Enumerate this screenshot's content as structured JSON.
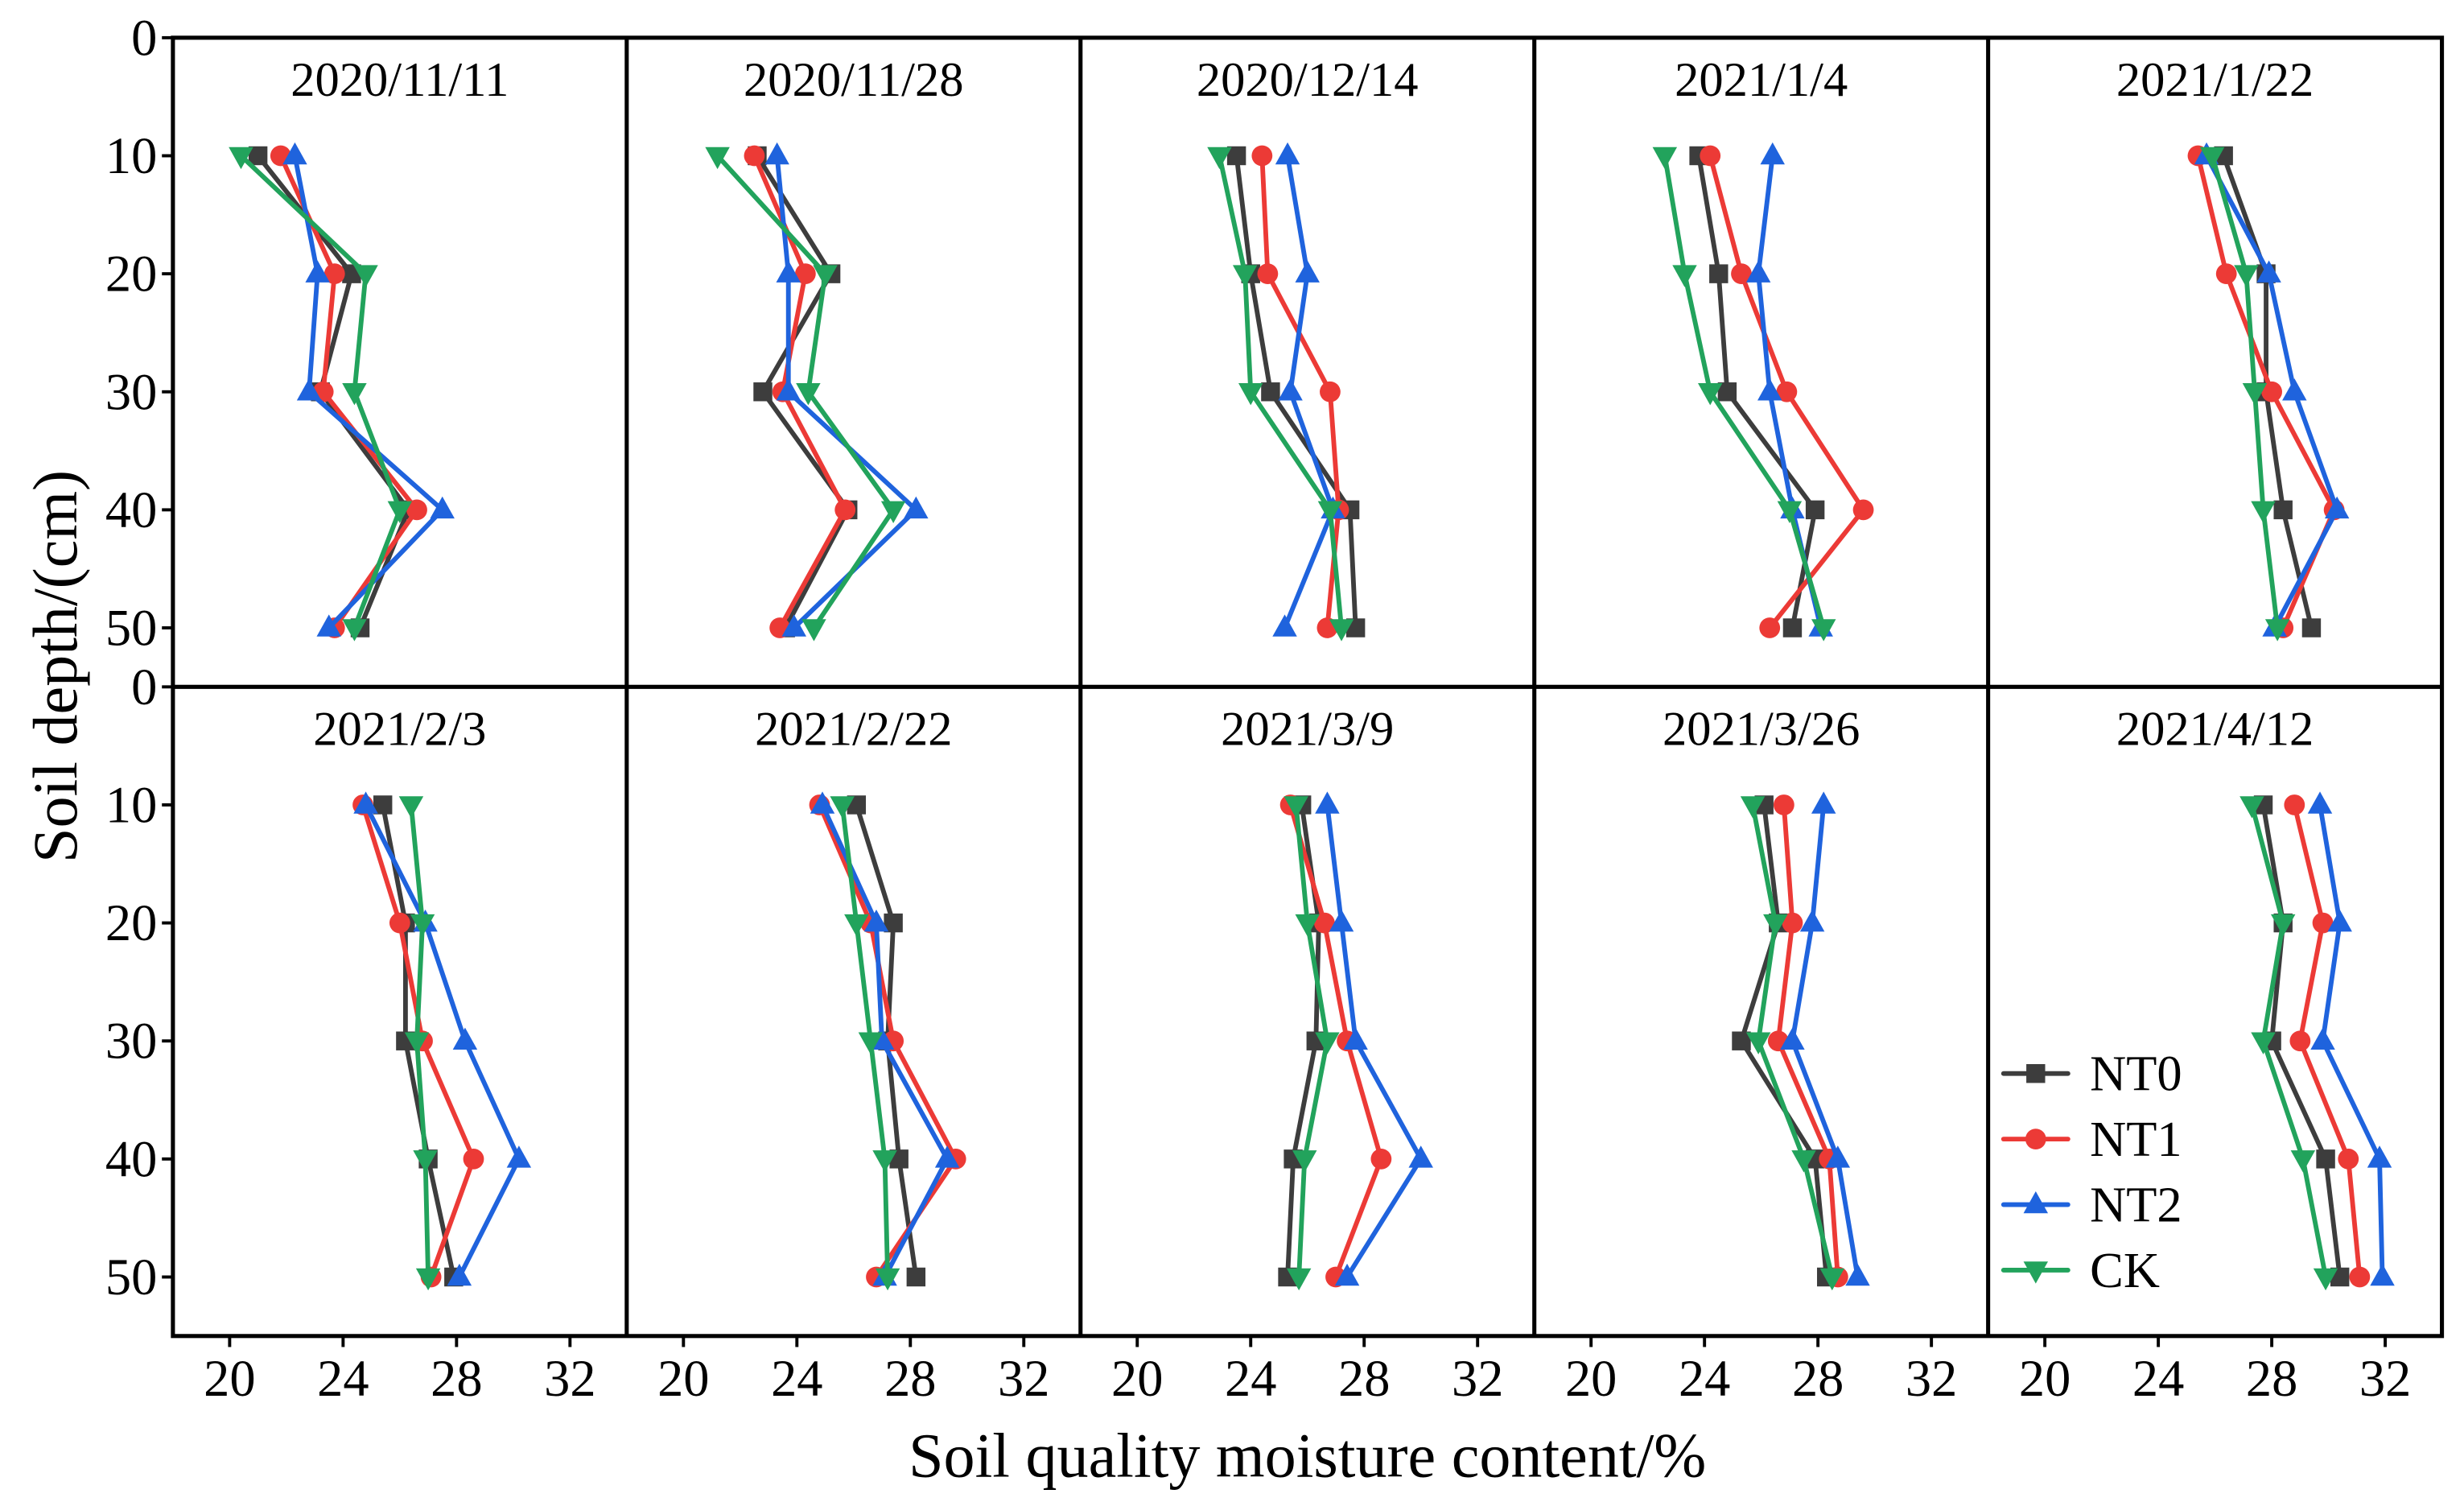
{
  "chart_data": {
    "type": "line",
    "xlabel": "Soil quality moisture content/%",
    "ylabel": "Soil depth/(cm)",
    "xlim": [
      18,
      34
    ],
    "ylim": [
      0,
      55
    ],
    "y_inverted": true,
    "x_ticks": [
      20,
      24,
      28,
      32
    ],
    "y_ticks": [
      0,
      10,
      20,
      30,
      40,
      50
    ],
    "grid": false,
    "legend": {
      "position": "lower-left"
    },
    "depth_cm": [
      10,
      20,
      30,
      40,
      50
    ],
    "series": [
      {
        "name": "NT0",
        "color": "#3d3d3d",
        "marker": "square"
      },
      {
        "name": "NT1",
        "color": "#ec3a36",
        "marker": "circle"
      },
      {
        "name": "NT2",
        "color": "#1f63dd",
        "marker": "triangle-up"
      },
      {
        "name": "CK",
        "color": "#22a35c",
        "marker": "triangle-down"
      }
    ],
    "panels": [
      {
        "title": "2020/11/11",
        "values": {
          "NT0": [
            21.0,
            24.3,
            23.2,
            26.3,
            24.6
          ],
          "NT1": [
            21.8,
            23.7,
            23.3,
            26.6,
            23.7
          ],
          "NT2": [
            22.3,
            23.1,
            22.8,
            27.5,
            23.5
          ],
          "CK": [
            20.4,
            24.8,
            24.4,
            26.0,
            24.4
          ]
        }
      },
      {
        "title": "2020/11/28",
        "values": {
          "NT0": [
            22.6,
            25.2,
            22.8,
            25.8,
            23.6
          ],
          "NT1": [
            22.5,
            24.3,
            23.5,
            25.7,
            23.4
          ],
          "NT2": [
            23.3,
            23.7,
            23.7,
            28.2,
            23.9
          ],
          "CK": [
            21.2,
            25.0,
            24.4,
            27.4,
            24.6
          ]
        }
      },
      {
        "title": "2020/12/14",
        "values": {
          "NT0": [
            23.5,
            24.0,
            24.7,
            27.5,
            27.7
          ],
          "NT1": [
            24.4,
            24.6,
            26.8,
            27.1,
            26.7
          ],
          "NT2": [
            25.3,
            26.0,
            25.4,
            26.9,
            25.2
          ],
          "CK": [
            22.9,
            23.8,
            24.0,
            26.8,
            27.2
          ]
        }
      },
      {
        "title": "2021/1/4",
        "values": {
          "NT0": [
            23.8,
            24.5,
            24.8,
            27.9,
            27.1
          ],
          "NT1": [
            24.2,
            25.3,
            26.9,
            29.6,
            26.3
          ],
          "NT2": [
            26.4,
            25.9,
            26.3,
            27.1,
            28.1
          ],
          "CK": [
            22.6,
            23.3,
            24.2,
            27.0,
            28.2
          ]
        }
      },
      {
        "title": "2021/1/22",
        "values": {
          "NT0": [
            26.3,
            27.8,
            27.8,
            28.4,
            29.4
          ],
          "NT1": [
            25.4,
            26.4,
            28.0,
            30.2,
            28.4
          ],
          "NT2": [
            25.7,
            27.9,
            28.8,
            30.3,
            28.1
          ],
          "CK": [
            25.9,
            27.1,
            27.4,
            27.7,
            28.2
          ]
        }
      },
      {
        "title": "2021/2/3",
        "values": {
          "NT0": [
            25.4,
            26.2,
            26.2,
            27.0,
            27.9
          ],
          "NT1": [
            24.7,
            26.0,
            26.8,
            28.6,
            27.1
          ],
          "NT2": [
            24.8,
            26.9,
            28.3,
            30.2,
            28.1
          ],
          "CK": [
            26.4,
            26.8,
            26.6,
            26.9,
            27.0
          ]
        }
      },
      {
        "title": "2021/2/22",
        "values": {
          "NT0": [
            26.1,
            27.4,
            27.2,
            27.6,
            28.2
          ],
          "NT1": [
            24.8,
            26.6,
            27.4,
            29.6,
            26.8
          ],
          "NT2": [
            24.9,
            26.8,
            27.0,
            29.3,
            27.1
          ],
          "CK": [
            25.6,
            26.1,
            26.6,
            27.1,
            27.2
          ]
        }
      },
      {
        "title": "2021/3/9",
        "values": {
          "NT0": [
            25.8,
            26.4,
            26.3,
            25.5,
            25.3
          ],
          "NT1": [
            25.4,
            26.6,
            27.4,
            28.6,
            27.0
          ],
          "NT2": [
            26.7,
            27.2,
            27.7,
            30.0,
            27.4
          ],
          "CK": [
            25.6,
            26.0,
            26.7,
            25.9,
            25.7
          ]
        }
      },
      {
        "title": "2021/3/26",
        "values": {
          "NT0": [
            26.1,
            26.6,
            25.3,
            27.9,
            28.3
          ],
          "NT1": [
            26.8,
            27.1,
            26.6,
            28.4,
            28.7
          ],
          "NT2": [
            28.2,
            27.8,
            27.1,
            28.7,
            29.4
          ],
          "CK": [
            25.7,
            26.5,
            25.9,
            27.5,
            28.5
          ]
        }
      },
      {
        "title": "2021/4/12",
        "values": {
          "NT0": [
            27.7,
            28.4,
            28.0,
            29.9,
            30.4
          ],
          "NT1": [
            28.8,
            29.8,
            29.0,
            30.7,
            31.1
          ],
          "NT2": [
            29.7,
            30.4,
            29.8,
            31.8,
            31.9
          ],
          "CK": [
            27.3,
            28.4,
            27.7,
            29.1,
            29.9
          ]
        }
      }
    ]
  }
}
